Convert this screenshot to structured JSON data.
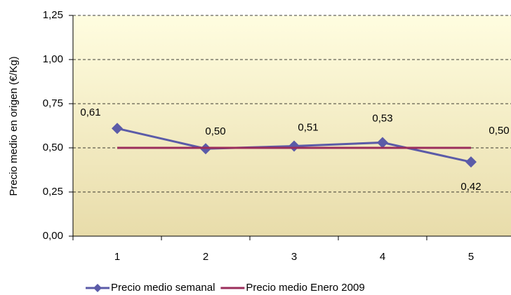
{
  "chart_data": {
    "type": "line",
    "y_label": "Precio medio en origen (€/Kg)",
    "categories": [
      "1",
      "2",
      "3",
      "4",
      "5"
    ],
    "series": [
      {
        "name": "Precio medio semanal",
        "color": "#5b5ba8",
        "values": [
          0.61,
          0.495,
          0.51,
          0.53,
          0.42
        ],
        "value_labels": [
          "0,61",
          "0,50",
          "0,51",
          "0,53",
          "0,42"
        ],
        "marker": "diamond"
      },
      {
        "name": "Precio medio Enero 2009",
        "color": "#9b2d5b",
        "values": [
          0.5,
          0.5,
          0.5,
          0.5,
          0.5
        ],
        "value_labels": [
          null,
          null,
          null,
          null,
          "0,50"
        ]
      }
    ],
    "ylim": [
      0,
      1.25
    ],
    "yticks": [
      {
        "value": 0,
        "label": "0,00"
      },
      {
        "value": 0.25,
        "label": "0,25"
      },
      {
        "value": 0.5,
        "label": "0,50"
      },
      {
        "value": 0.75,
        "label": "0,75"
      },
      {
        "value": 1,
        "label": "1,00"
      },
      {
        "value": 1.25,
        "label": "1,25"
      }
    ],
    "grid": true
  }
}
